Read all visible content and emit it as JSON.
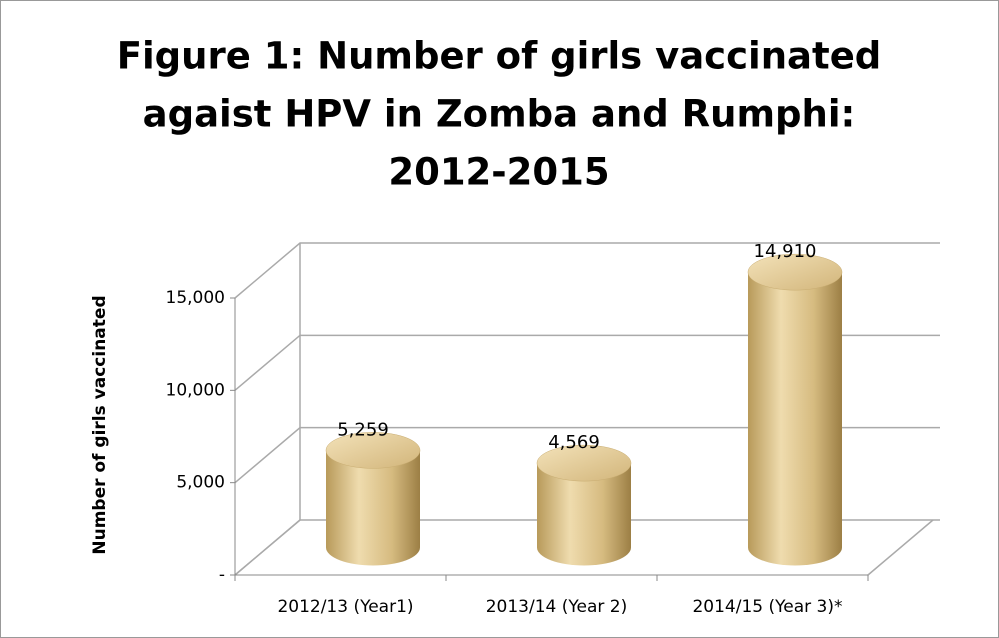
{
  "chart_data": {
    "type": "bar3d",
    "title": [
      "Figure 1: Number of girls vaccinated",
      "agaist HPV in Zomba and Rumphi:",
      "2012-2015"
    ],
    "y_label": "Number of girls vaccinated",
    "categories": [
      "2012/13 (Year1)",
      "2013/14 (Year 2)",
      "2014/15 (Year 3)*"
    ],
    "values": [
      5259,
      4569,
      14910
    ],
    "value_labels": [
      "5,259",
      "4,569",
      "14,910"
    ],
    "color": "#d9bf86",
    "ylim": [
      0,
      15000
    ],
    "yticks": [
      {
        "value": 0,
        "label": "-"
      },
      {
        "value": 5000,
        "label": "5,000"
      },
      {
        "value": 10000,
        "label": "10,000"
      },
      {
        "value": 15000,
        "label": "15,000"
      }
    ],
    "grid": true
  }
}
